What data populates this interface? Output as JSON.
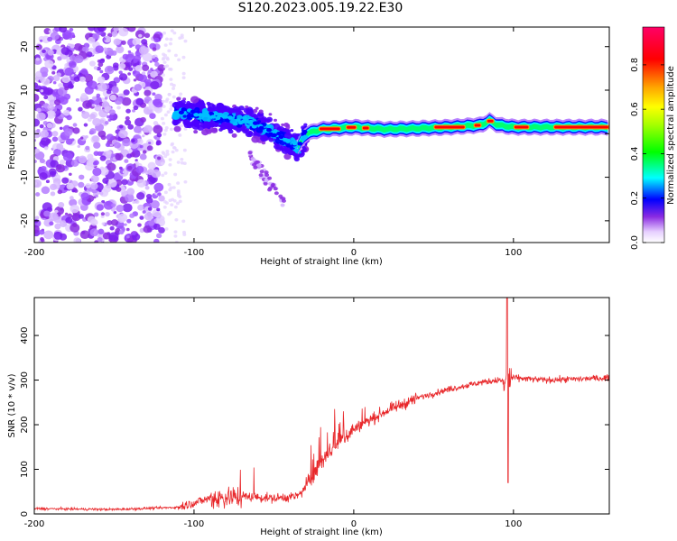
{
  "title": "S120.2023.005.19.22.E30",
  "chart_data": [
    {
      "type": "heatmap",
      "xlabel": "Height of straight line (km)",
      "ylabel": "Frequency (Hz)",
      "xlim": [
        -200,
        160
      ],
      "ylim": [
        -25,
        24.5
      ],
      "xticks": [
        -200,
        -100,
        0,
        100
      ],
      "yticks": [
        -20,
        -10,
        0,
        10,
        20
      ],
      "colorbar": {
        "label": "Normalized spectral amplitude",
        "range": [
          0,
          0.97
        ],
        "ticks": [
          0.0,
          0.2,
          0.4,
          0.6,
          0.8
        ]
      },
      "ridge": {
        "description_points_x": [
          -110,
          -100,
          -90,
          -80,
          -70,
          -60,
          -50,
          -40,
          -35,
          -30,
          -20,
          0,
          20,
          40,
          60,
          80,
          85,
          90,
          100,
          120,
          140,
          160
        ],
        "description_points_y": [
          5,
          4.5,
          4,
          3.5,
          3,
          2,
          0,
          -2,
          -3,
          0,
          1,
          1.5,
          1,
          1.2,
          1.5,
          2,
          3,
          2,
          1.5,
          1.5,
          1.5,
          1.5
        ]
      }
    },
    {
      "type": "line",
      "xlabel": "Height of straight line (km)",
      "ylabel": "SNR (10 * v/v)",
      "xlim": [
        -200,
        160
      ],
      "ylim": [
        0,
        485
      ],
      "xticks": [
        -200,
        -100,
        0,
        100
      ],
      "yticks": [
        0,
        100,
        200,
        300,
        400
      ],
      "trend_x": [
        -200,
        -150,
        -110,
        -100,
        -90,
        -70,
        -50,
        -35,
        -30,
        -20,
        -10,
        0,
        20,
        40,
        60,
        80,
        90,
        95,
        100,
        120,
        160
      ],
      "trend_y": [
        12,
        10,
        15,
        25,
        35,
        40,
        35,
        40,
        60,
        120,
        160,
        190,
        230,
        260,
        280,
        295,
        300,
        300,
        305,
        300,
        305
      ],
      "spike": {
        "x": 96,
        "max": 485,
        "min": 70
      }
    }
  ]
}
